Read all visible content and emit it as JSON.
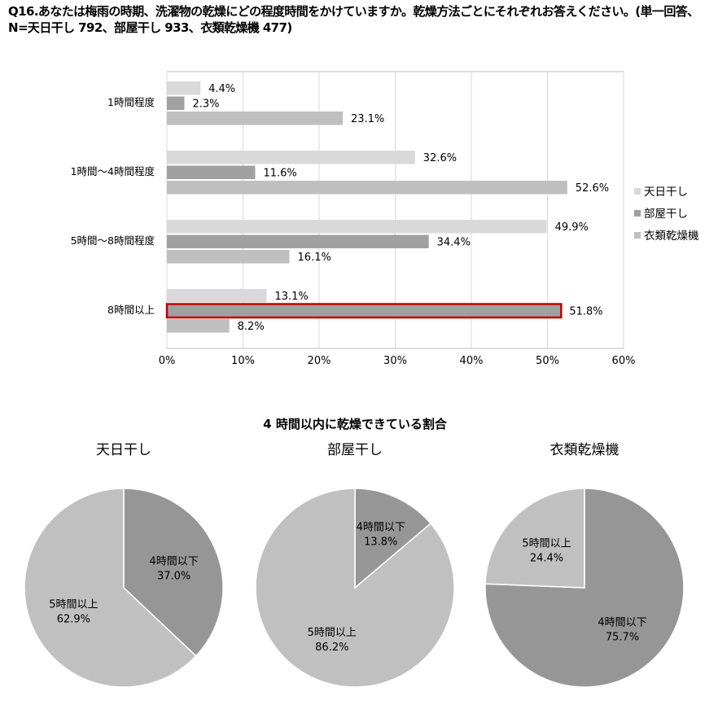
{
  "title": "Q16.あなたは梅雨の時期、洗濯物の乾燥にどの程度時間をかけていますか。乾燥方法ごとにそれぞれお答えください。(単一回答、N=天日干し 792、部屋干し 933、衣類乾燥機 477)",
  "chart_data": [
    {
      "type": "bar",
      "orientation": "horizontal",
      "categories": [
        "1時間程度",
        "1時間～4時間程度",
        "5時間～8時間程度",
        "8時間以上"
      ],
      "series": [
        {
          "name": "天日干し",
          "values": [
            4.4,
            32.6,
            49.9,
            13.1
          ],
          "color": "#d9d9d9"
        },
        {
          "name": "部屋干し",
          "values": [
            2.3,
            11.6,
            34.4,
            51.8
          ],
          "color": "#a0a0a0"
        },
        {
          "name": "衣類乾燥機",
          "values": [
            23.1,
            52.6,
            16.1,
            8.2
          ],
          "color": "#bfbfbf"
        }
      ],
      "xlim": [
        0,
        60
      ],
      "xticks": [
        "0%",
        "10%",
        "20%",
        "30%",
        "40%",
        "50%",
        "60%"
      ],
      "grid": true,
      "legend": "right",
      "highlight": {
        "category": "8時間以上",
        "series": "部屋干し",
        "color": "#c00000"
      }
    },
    {
      "type": "pie",
      "group_title": "4 時間以内に乾燥できている割合",
      "title": "天日干し",
      "slices": [
        {
          "label": "4時間以下",
          "value": 37.0,
          "text": "37.0%",
          "color": "#969696"
        },
        {
          "label": "5時間以上",
          "value": 62.9,
          "text": "62.9%",
          "color": "#c0c0c0"
        }
      ]
    },
    {
      "type": "pie",
      "title": "部屋干し",
      "slices": [
        {
          "label": "4時間以下",
          "value": 13.8,
          "text": "13.8%",
          "color": "#969696"
        },
        {
          "label": "5時間以上",
          "value": 86.2,
          "text": "86.2%",
          "color": "#c0c0c0"
        }
      ]
    },
    {
      "type": "pie",
      "title": "衣類乾燥機",
      "slices": [
        {
          "label": "4時間以下",
          "value": 75.7,
          "text": "75.7%",
          "color": "#969696"
        },
        {
          "label": "5時間以上",
          "value": 24.4,
          "text": "24.4%",
          "color": "#c0c0c0"
        }
      ]
    }
  ]
}
